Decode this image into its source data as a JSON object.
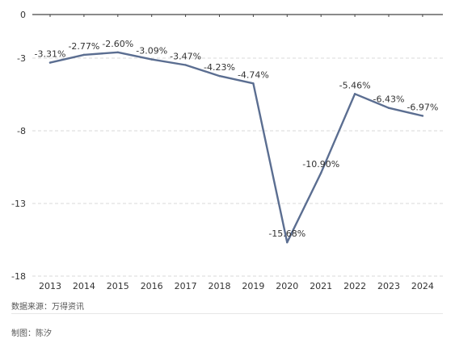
{
  "chart_data": {
    "type": "line",
    "categories": [
      "2013",
      "2014",
      "2015",
      "2016",
      "2017",
      "2018",
      "2019",
      "2020",
      "2021",
      "2022",
      "2023",
      "2024"
    ],
    "series": [
      {
        "values": [
          -3.31,
          -2.77,
          -2.6,
          -3.09,
          -3.47,
          -4.23,
          -4.74,
          -15.68,
          -10.9,
          -5.46,
          -6.43,
          -6.97
        ]
      }
    ],
    "data_labels": [
      "-3.31%",
      "-2.77%",
      "-2.60%",
      "-3.09%",
      "-3.47%",
      "-4.23%",
      "-4.74%",
      "-15.68%",
      "-10.90%",
      "-5.46%",
      "-6.43%",
      "-6.97%"
    ],
    "yticks": [
      0,
      -3,
      -8,
      -13,
      -18
    ],
    "ylim": [
      -18,
      0
    ],
    "grid": "dashed-horizontal",
    "line_color": "#5b6e91",
    "title": "",
    "xlabel": "",
    "ylabel": ""
  },
  "footer": {
    "source": "数据来源：万得资讯",
    "author": "制图：陈汐"
  }
}
